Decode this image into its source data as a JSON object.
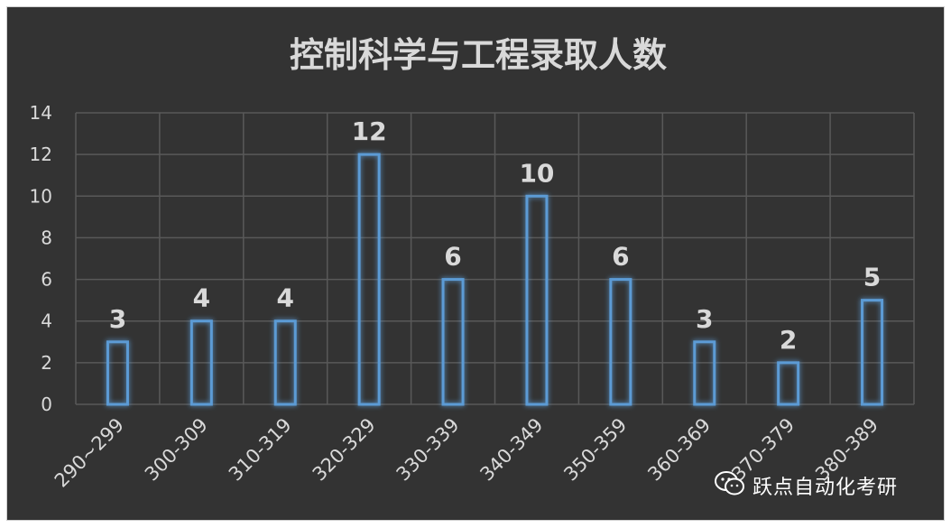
{
  "chart_data": {
    "type": "bar",
    "title": "控制科学与工程录取人数",
    "categories": [
      "290~299",
      "300-309",
      "310-319",
      "320-329",
      "330-339",
      "340-349",
      "350-359",
      "360-369",
      "370-379",
      "380-389"
    ],
    "values": [
      3,
      4,
      4,
      12,
      6,
      10,
      6,
      3,
      2,
      5
    ],
    "yticks": [
      "0",
      "2",
      "4",
      "6",
      "8",
      "10",
      "12",
      "14"
    ],
    "ylim": [
      0,
      14
    ],
    "grid": true,
    "legend": "none",
    "data_labels": true,
    "colors": {
      "background": "#333333",
      "bar_outline": "#5b9bd5",
      "bar_glow": "#2e75b6",
      "text": "#d9d9d9",
      "grid": "#595959"
    }
  },
  "watermark": {
    "text": "跃点自动化考研",
    "icon": "wechat-icon"
  }
}
